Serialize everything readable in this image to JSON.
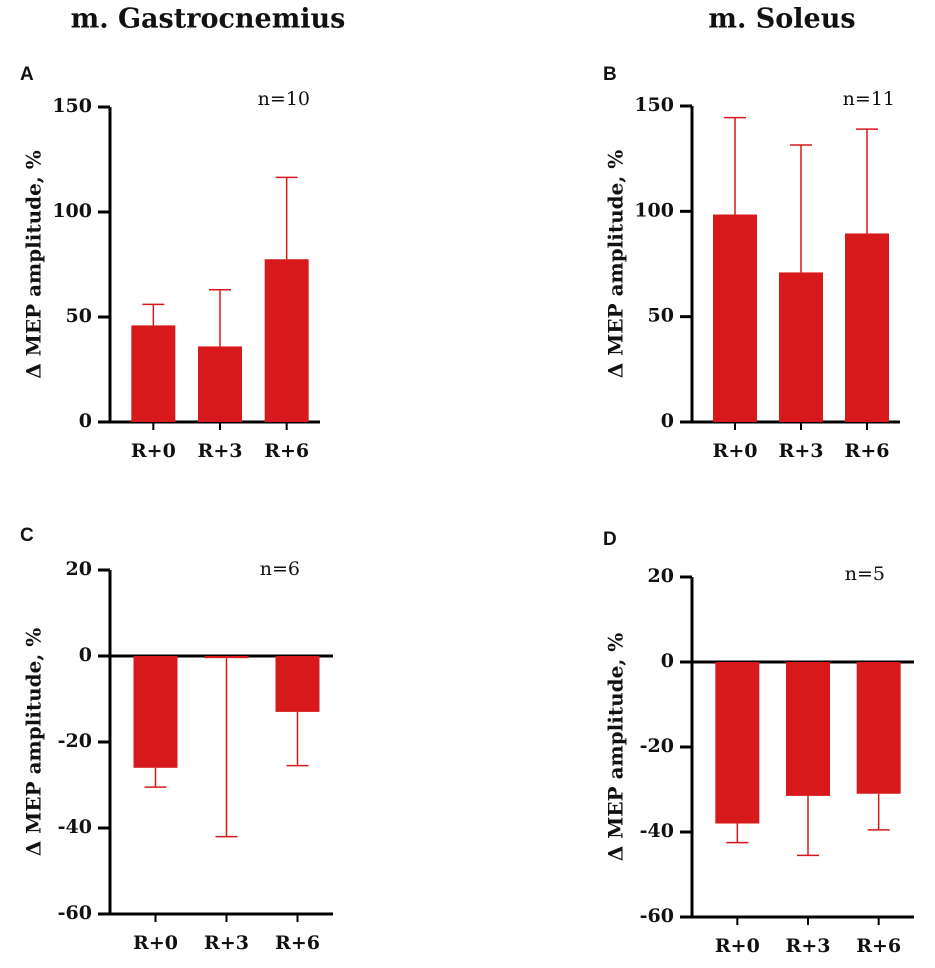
{
  "headers": [
    "m. Gastrocnemius",
    "m. Soleus"
  ],
  "chart_data": [
    {
      "type": "bar",
      "title": "A",
      "annotation": "n=10",
      "ylabel": "Δ MEP amplitude, %",
      "categories": [
        "R+0",
        "R+3",
        "R+6"
      ],
      "values": [
        46,
        36,
        77.5
      ],
      "errors": [
        10,
        27,
        39
      ],
      "color": "#d7191c",
      "ylim": [
        0,
        150
      ],
      "yticks": [
        0,
        50,
        100,
        150
      ]
    },
    {
      "type": "bar",
      "title": "B",
      "annotation": "n=11",
      "ylabel": "Δ MEP amplitude, %",
      "categories": [
        "R+0",
        "R+3",
        "R+6"
      ],
      "values": [
        98.5,
        71,
        89.5
      ],
      "errors": [
        46,
        60.5,
        49.5
      ],
      "color": "#d7191c",
      "ylim": [
        0,
        150
      ],
      "yticks": [
        0,
        50,
        100,
        150
      ]
    },
    {
      "type": "bar",
      "title": "C",
      "annotation": "n=6",
      "ylabel": "Δ MEP amplitude, %",
      "categories": [
        "R+0",
        "R+3",
        "R+6"
      ],
      "values": [
        -26,
        -0.5,
        -13
      ],
      "errors": [
        4.5,
        41.5,
        12.5
      ],
      "color": "#d7191c",
      "ylim": [
        -60,
        20
      ],
      "yticks": [
        -60,
        -40,
        -20,
        0,
        20
      ]
    },
    {
      "type": "bar",
      "title": "D",
      "annotation": "n=5",
      "ylabel": "Δ MEP amplitude, %",
      "categories": [
        "R+0",
        "R+3",
        "R+6"
      ],
      "values": [
        -38,
        -31.5,
        -31
      ],
      "errors": [
        4.5,
        14,
        8.5
      ],
      "color": "#d7191c",
      "ylim": [
        -60,
        20
      ],
      "yticks": [
        -60,
        -40,
        -20,
        0,
        20
      ]
    }
  ]
}
